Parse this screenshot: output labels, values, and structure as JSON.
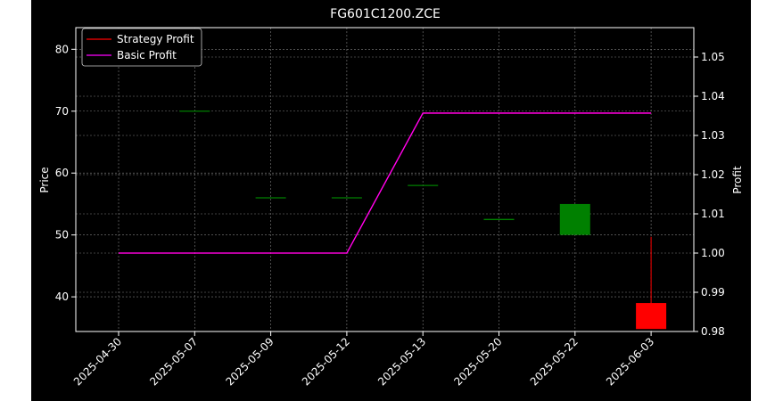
{
  "chart_data": {
    "type": "candlestick",
    "title": "FG601C1200.ZCE",
    "ylabel_left": "Price",
    "ylabel_right": "Profit",
    "xlabel": "",
    "categories": [
      "2025-04-30",
      "2025-05-07",
      "2025-05-09",
      "2025-05-12",
      "2025-05-13",
      "2025-05-20",
      "2025-05-22",
      "2025-06-03"
    ],
    "candles": [
      {
        "open": 81.0,
        "high": 81.0,
        "low": 81.0,
        "close": 81.0
      },
      {
        "open": 70.0,
        "high": 70.0,
        "low": 70.0,
        "close": 70.0
      },
      {
        "open": 56.0,
        "high": 56.0,
        "low": 56.0,
        "close": 56.0
      },
      {
        "open": 56.0,
        "high": 56.0,
        "low": 56.0,
        "close": 56.0
      },
      {
        "open": 58.0,
        "high": 58.0,
        "low": 58.0,
        "close": 58.0
      },
      {
        "open": 52.5,
        "high": 52.5,
        "low": 52.5,
        "close": 52.5
      },
      {
        "open": 50.0,
        "high": 55.0,
        "low": 50.0,
        "close": 55.0
      },
      {
        "open": 39.0,
        "high": 49.7,
        "low": 34.8,
        "close": 34.8
      }
    ],
    "series": [
      {
        "name": "Strategy Profit",
        "color": "#ff0000",
        "axis": "right",
        "values": [
          1.0,
          1.0,
          1.0,
          1.0,
          1.0357,
          1.0357,
          1.0357,
          1.0357
        ]
      },
      {
        "name": "Basic Profit",
        "color": "#ff00ff",
        "axis": "right",
        "values": [
          1.0,
          1.0,
          1.0,
          1.0,
          1.0357,
          1.0357,
          1.0357,
          1.0357
        ]
      }
    ],
    "ylim_left": [
      34.4,
      83.5
    ],
    "ylim_right": [
      0.98,
      1.0575
    ],
    "yticks_left": [
      40,
      50,
      60,
      70,
      80
    ],
    "yticks_right": [
      "0.98",
      "0.99",
      "1.00",
      "1.01",
      "1.02",
      "1.03",
      "1.04",
      "1.05"
    ],
    "grid": true,
    "legend_position": "top-left",
    "colors": {
      "background": "#000000",
      "up": "#008000",
      "down": "#ff0000",
      "text": "#ffffff",
      "grid": "#808080"
    }
  }
}
